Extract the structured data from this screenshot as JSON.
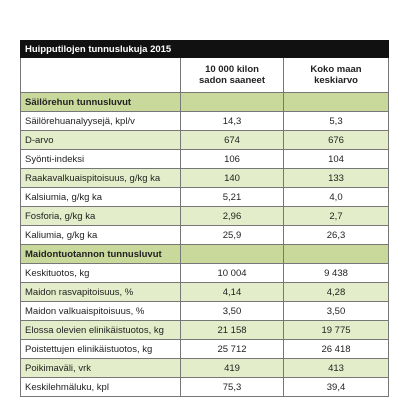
{
  "table": {
    "title": "Huipputilojen tunnuslukuja 2015",
    "columns": [
      "10 000 kilon sadon saaneet",
      "Koko maan keskiarvo"
    ],
    "sections": [
      {
        "title": "Säilörehun tunnusluvut",
        "rows": [
          [
            "Säilörehuanalyysejä, kpl/v",
            "14,3",
            "5,3"
          ],
          [
            "D-arvo",
            "674",
            "676"
          ],
          [
            "Syönti-indeksi",
            "106",
            "104"
          ],
          [
            "Raakavalkuaispitoisuus, g/kg ka",
            "140",
            "133"
          ],
          [
            "Kalsiumia, g/kg ka",
            "5,21",
            "4,0"
          ],
          [
            "Fosforia, g/kg ka",
            "2,96",
            "2,7"
          ],
          [
            "Kaliumia, g/kg ka",
            "25,9",
            "26,3"
          ]
        ]
      },
      {
        "title": "Maidontuotannon tunnusluvut",
        "rows": [
          [
            "Keskituotos, kg",
            "10 004",
            "9 438"
          ],
          [
            "Maidon rasvapitoisuus, %",
            "4,14",
            "4,28"
          ],
          [
            "Maidon valkuaispitoisuus, %",
            "3,50",
            "3,50"
          ],
          [
            "Elossa olevien elinikäistuotos, kg",
            "21 158",
            "19 775"
          ],
          [
            "Poistettujen elinikäistuotos, kg",
            "25 712",
            "26 418"
          ],
          [
            "Poikimaväli, vrk",
            "419",
            "413"
          ],
          [
            "Keskilehmäluku, kpl",
            "75,3",
            "39,4"
          ]
        ]
      }
    ]
  }
}
